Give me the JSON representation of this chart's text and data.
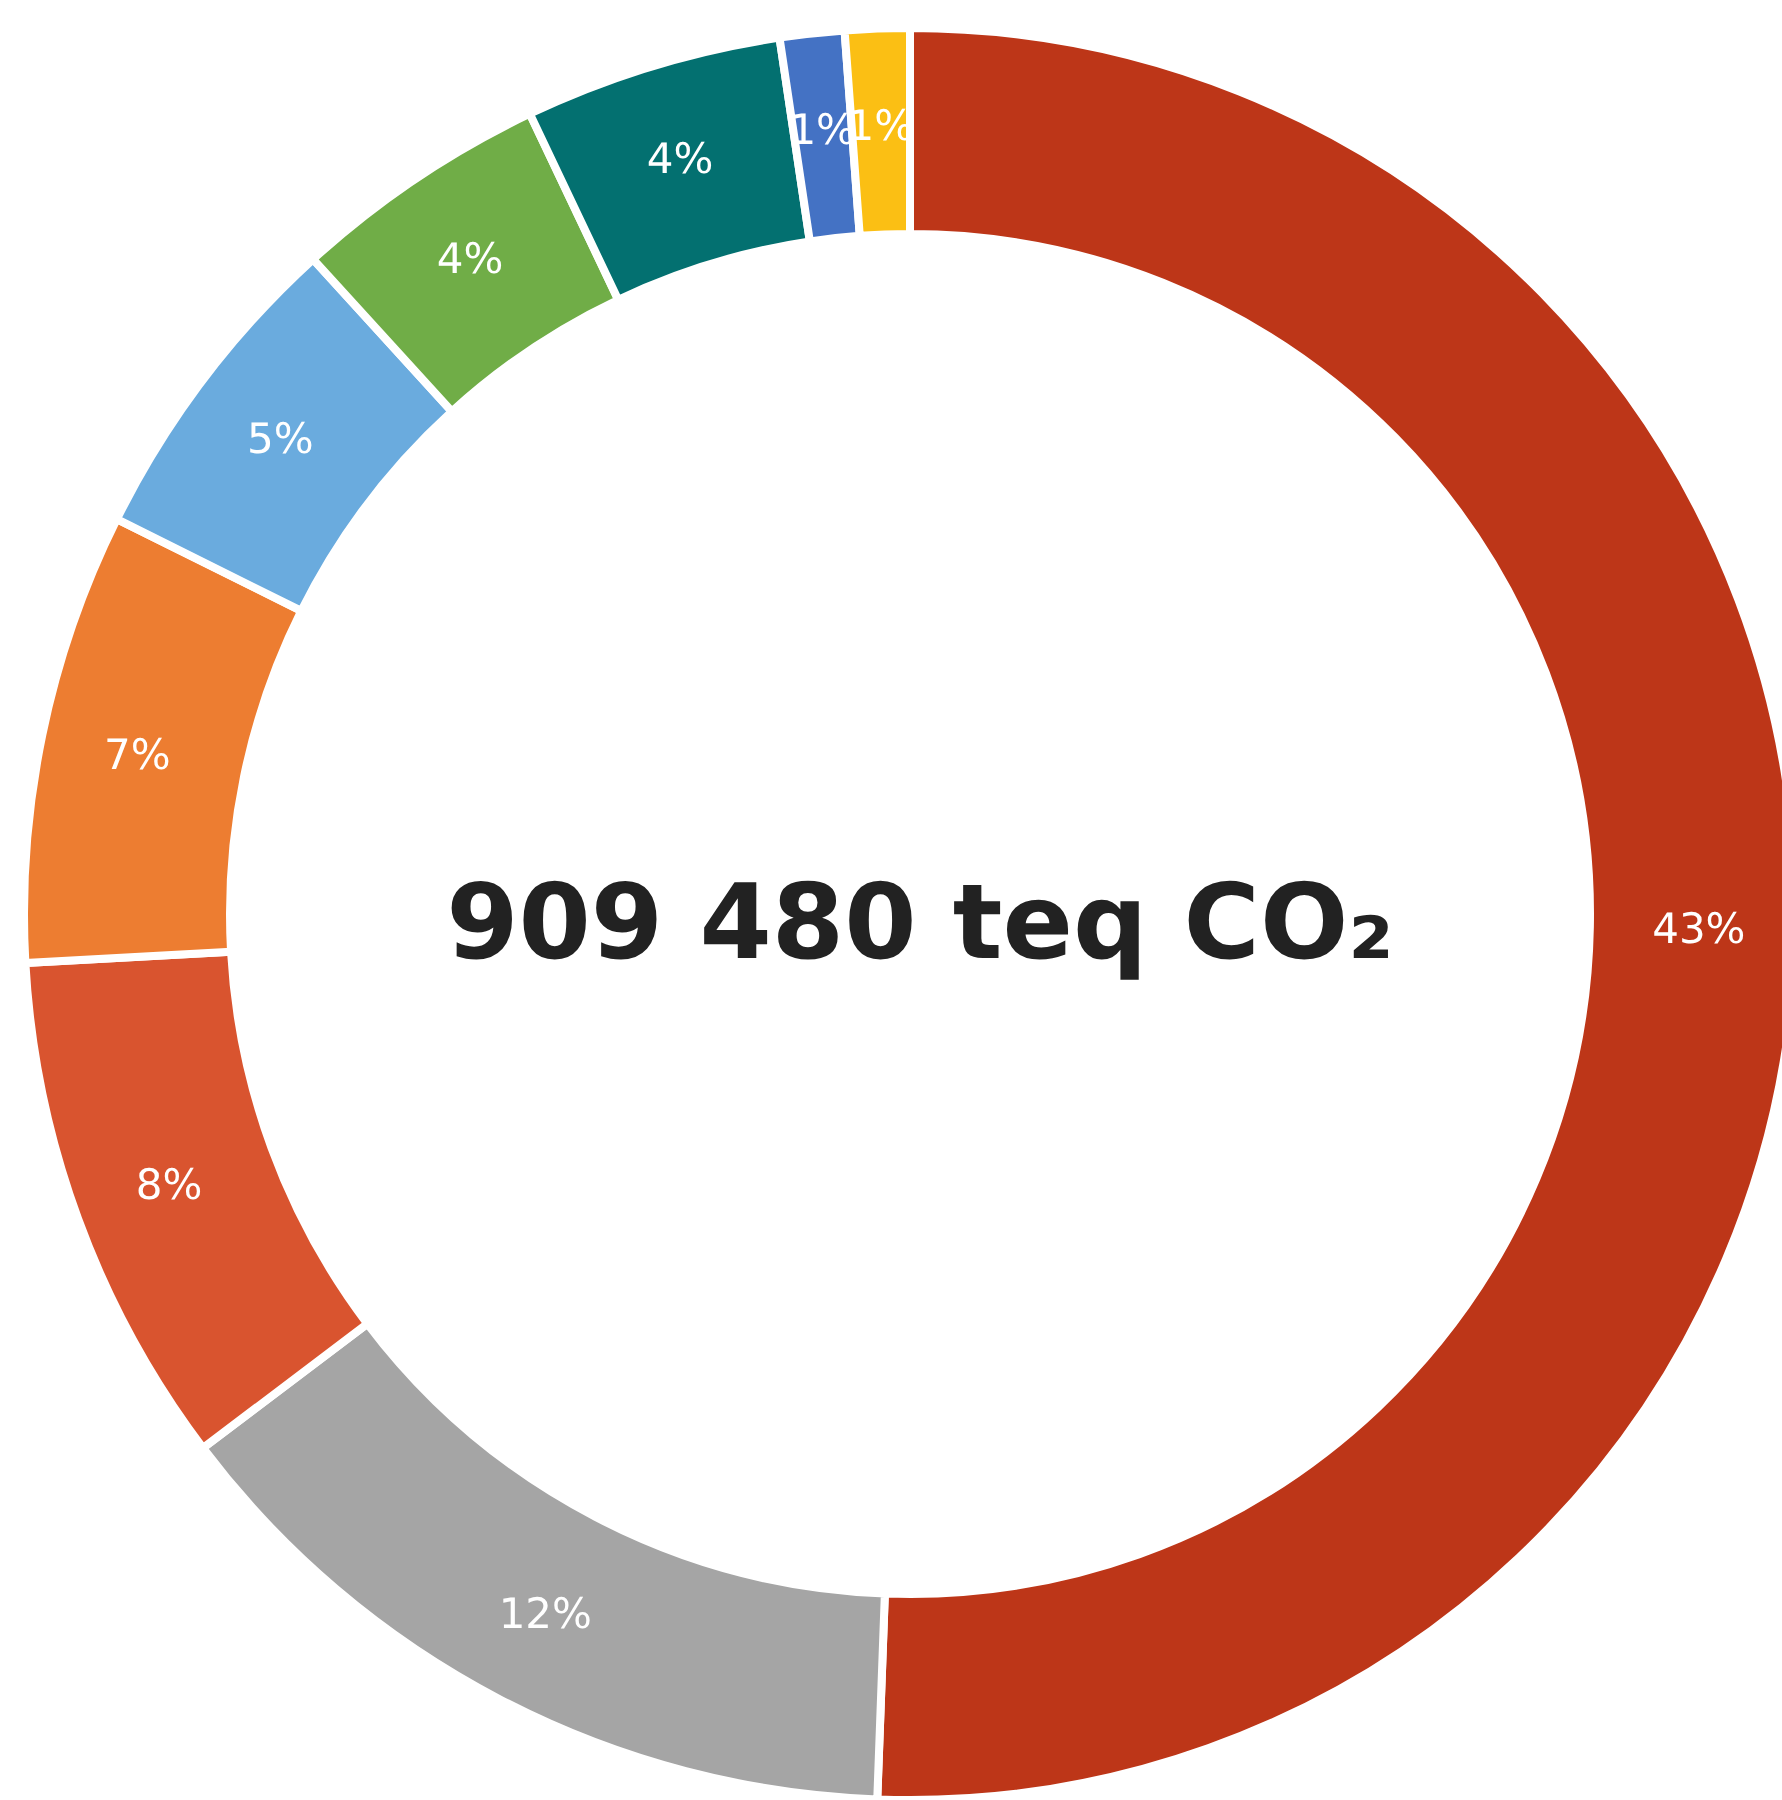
{
  "chart_data": {
    "type": "donut",
    "title": "909 480 teq CO₂",
    "categories": [
      null,
      null,
      null,
      null,
      null,
      null,
      null,
      null,
      null
    ],
    "values": [
      43,
      12,
      8,
      7,
      5,
      4,
      4,
      1,
      1
    ],
    "value_labels": [
      "43%",
      "12%",
      "8%",
      "7%",
      "5%",
      "4%",
      "4%",
      "1%",
      "1%"
    ],
    "colors": [
      "#bd3618",
      "#a5a5a5",
      "#d9542f",
      "#ed7d31",
      "#6aabde",
      "#70ad47",
      "#037070",
      "#4472c4",
      "#fbbf14"
    ]
  }
}
